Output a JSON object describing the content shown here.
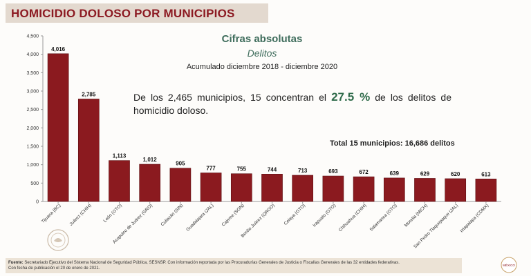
{
  "header": {
    "title": "HOMICIDIO DOLOSO POR MUNICIPIOS"
  },
  "subtitle": {
    "line1": "Cifras absolutas",
    "line2": "Delitos",
    "line3": "Acumulado diciembre 2018 - diciembre 2020"
  },
  "stat": {
    "pre": "De los 2,465 municipios, 15 concentran el ",
    "highlight": "27.5 %",
    "post": " de los delitos de homicidio doloso."
  },
  "total": "Total 15 municipios: 16,686 delitos",
  "footer": {
    "source_label": "Fuente:",
    "source_text": "Secretariado Ejecutivo del Sistema Nacional de Seguridad Pública, SESNSP. Con información reportada por las Procuradurías Generales de Justicia o Fiscalías Generales de las 32 entidades federativas.",
    "date_text": "Con fecha de publicación el 20 de enero de 2021."
  },
  "logos": {
    "right_seal_text": "MÉXICO"
  },
  "colors": {
    "bar": "#8b1a1f",
    "bar_edge": "#5e0f13",
    "accent_green": "#2f6b4a",
    "title_red": "#8c1a22"
  },
  "chart_data": {
    "type": "bar",
    "categories": [
      "Tijuana (BC)",
      "Juárez (CHIH)",
      "León (GTO)",
      "Acapulco de Juárez (GRO)",
      "Culiacán (SIN)",
      "Guadalajara (JAL)",
      "Cajeme (SON)",
      "Benito Juárez (QROO)",
      "Celaya (GTO)",
      "Irapuato (GTO)",
      "Chihuahua (CHIH)",
      "Salamanca (GTO)",
      "Morelia (MICH)",
      "San Pedro Tlaquepaque (JAL)",
      "Iztapalapa (CDMX)"
    ],
    "values": [
      4016,
      2785,
      1113,
      1012,
      905,
      777,
      755,
      744,
      713,
      693,
      672,
      639,
      629,
      620,
      613
    ],
    "value_labels": [
      "4,016",
      "2,785",
      "1,113",
      "1,012",
      "905",
      "777",
      "755",
      "744",
      "713",
      "693",
      "672",
      "639",
      "629",
      "620",
      "613"
    ],
    "yticks": [
      "0",
      "500",
      "1,000",
      "1,500",
      "2,000",
      "2,500",
      "3,000",
      "3,500",
      "4,000",
      "4,500"
    ],
    "ylim": [
      0,
      4500
    ],
    "grid": false,
    "legend": "none"
  }
}
